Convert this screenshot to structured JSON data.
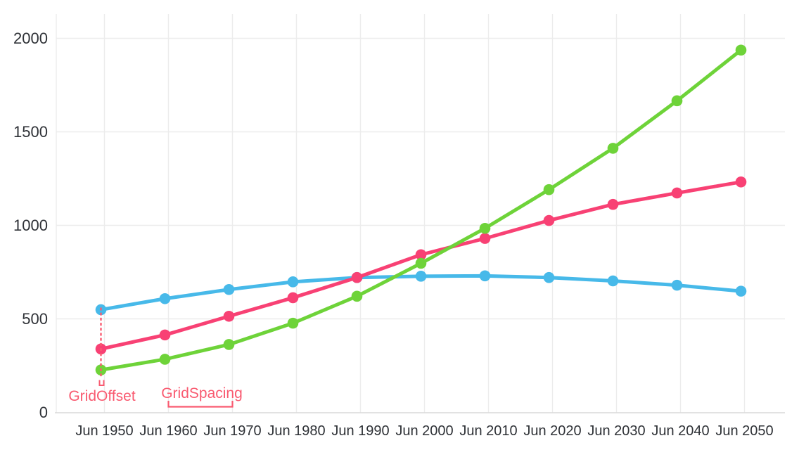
{
  "chart_data": {
    "type": "line",
    "title": "",
    "x_categories": [
      "Jun 1950",
      "Jun 1960",
      "Jun 1970",
      "Jun 1980",
      "Jun 1990",
      "Jun 2000",
      "Jun 2010",
      "Jun 2020",
      "Jun 2030",
      "Jun 2040",
      "Jun 2050"
    ],
    "y_tick_labels": [
      "0",
      "500",
      "1000",
      "1500",
      "2000"
    ],
    "y_tick_values": [
      0,
      500,
      1000,
      1500,
      2000
    ],
    "ylim": [
      0,
      2130
    ],
    "grid": {
      "visible": true,
      "offset_label": "GridOffset",
      "spacing_label": "GridSpacing",
      "annotation_color": "#f95a70"
    },
    "legend": "none",
    "marker": "circle",
    "series": [
      {
        "name": "blue",
        "color": "#47b9e9",
        "values": [
          549,
          608,
          657,
          698,
          721,
          728,
          730,
          721,
          703,
          680,
          648
        ]
      },
      {
        "name": "pink",
        "color": "#f84174",
        "values": [
          339,
          414,
          514,
          613,
          721,
          843,
          930,
          1026,
          1112,
          1173,
          1232
        ]
      },
      {
        "name": "green",
        "color": "#6ed339",
        "values": [
          227,
          284,
          363,
          477,
          621,
          797,
          984,
          1191,
          1412,
          1666,
          1937
        ]
      }
    ],
    "axis_color": "#d9d9d9",
    "gridline_color": "#ececec",
    "label_color": "#2f3237"
  }
}
